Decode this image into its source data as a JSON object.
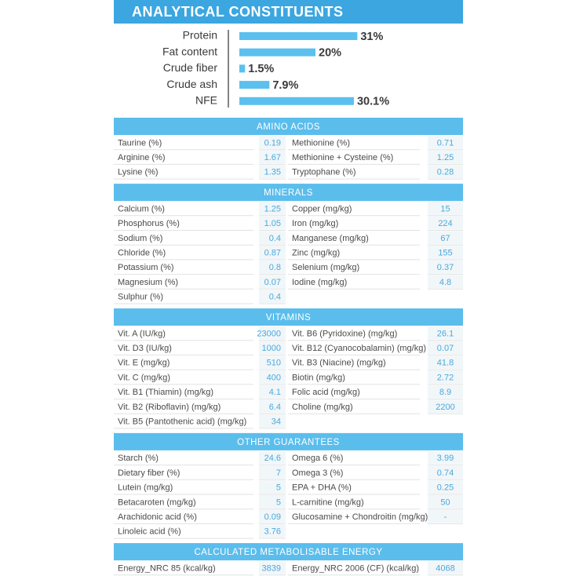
{
  "header": {
    "title": "ANALYTICAL CONSTITUENTS"
  },
  "analytical": {
    "items": [
      {
        "name": "Protein",
        "value": 31,
        "label": "31%"
      },
      {
        "name": "Fat content",
        "value": 20,
        "label": "20%"
      },
      {
        "name": "Crude fiber",
        "value": 1.5,
        "label": "1.5%"
      },
      {
        "name": "Crude ash",
        "value": 7.9,
        "label": "7.9%"
      },
      {
        "name": "NFE",
        "value": 30.1,
        "label": "30.1%"
      }
    ]
  },
  "sections": [
    {
      "title": "AMINO ACIDS",
      "left": [
        [
          "Taurine (%)",
          "0.19"
        ],
        [
          "Arginine (%)",
          "1.67"
        ],
        [
          "Lysine (%)",
          "1.35"
        ]
      ],
      "right": [
        [
          "Methionine (%)",
          "0.71"
        ],
        [
          "Methionine + Cysteine (%)",
          "1.25"
        ],
        [
          "Tryptophane (%)",
          "0.28"
        ]
      ]
    },
    {
      "title": "MINERALS",
      "left": [
        [
          "Calcium (%)",
          "1.25"
        ],
        [
          "Phosphorus (%)",
          "1.05"
        ],
        [
          "Sodium (%)",
          "0.4"
        ],
        [
          "Chloride (%)",
          "0.87"
        ],
        [
          "Potassium (%)",
          "0.8"
        ],
        [
          "Magnesium (%)",
          "0.07"
        ],
        [
          "Sulphur (%)",
          "0.4"
        ]
      ],
      "right": [
        [
          "Copper (mg/kg)",
          "15"
        ],
        [
          "Iron (mg/kg)",
          "224"
        ],
        [
          "Manganese (mg/kg)",
          "67"
        ],
        [
          "Zinc (mg/kg)",
          "155"
        ],
        [
          "Selenium (mg/kg)",
          "0.37"
        ],
        [
          "Iodine (mg/kg)",
          "4.8"
        ]
      ]
    },
    {
      "title": "VITAMINS",
      "left": [
        [
          "Vit. A (IU/kg)",
          "23000"
        ],
        [
          "Vit. D3 (IU/kg)",
          "1000"
        ],
        [
          "Vit. E (mg/kg)",
          "510"
        ],
        [
          "Vit. C (mg/kg)",
          "400"
        ],
        [
          "Vit. B1 (Thiamin) (mg/kg)",
          "4.1"
        ],
        [
          "Vit. B2 (Riboflavin) (mg/kg)",
          "6.4"
        ],
        [
          "Vit. B5 (Pantothenic acid) (mg/kg)",
          "34"
        ]
      ],
      "right": [
        [
          "Vit. B6 (Pyridoxine) (mg/kg)",
          "26.1"
        ],
        [
          "Vit. B12 (Cyanocobalamin) (mg/kg)",
          "0.07"
        ],
        [
          "Vit. B3 (Niacine) (mg/kg)",
          "41.8"
        ],
        [
          "Biotin (mg/kg)",
          "2.72"
        ],
        [
          "Folic acid (mg/kg)",
          "8.9"
        ],
        [
          "Choline (mg/kg)",
          "2200"
        ]
      ]
    },
    {
      "title": "OTHER GUARANTEES",
      "left": [
        [
          "Starch (%)",
          "24.6"
        ],
        [
          "Dietary fiber (%)",
          "7"
        ],
        [
          "Lutein (mg/kg)",
          "5"
        ],
        [
          "Betacaroten (mg/kg)",
          "5"
        ],
        [
          "Arachidonic acid (%)",
          "0.09"
        ],
        [
          "Linoleic acid (%)",
          "3.76"
        ]
      ],
      "right": [
        [
          "Omega 6 (%)",
          "3.99"
        ],
        [
          "Omega 3 (%)",
          "0.74"
        ],
        [
          "EPA + DHA (%)",
          "0.25"
        ],
        [
          "L-carnitine (mg/kg)",
          "50"
        ],
        [
          "Glucosamine + Chondroitin (mg/kg)",
          "-"
        ]
      ]
    },
    {
      "title": "CALCULATED METABOLISABLE ENERGY",
      "left": [
        [
          "Energy_NRC 85 (kcal/kg)",
          "3839"
        ]
      ],
      "right": [
        [
          "Energy_NRC 2006 (CF) (kcal/kg)",
          "4068"
        ]
      ]
    }
  ]
}
